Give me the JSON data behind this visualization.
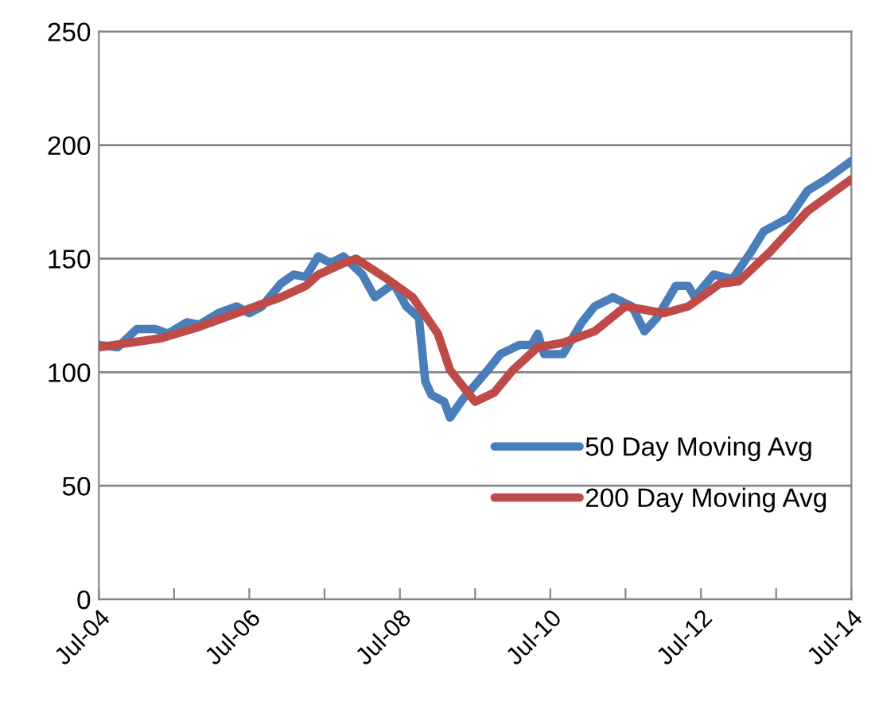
{
  "chart_data": {
    "type": "line",
    "ylim": [
      0,
      250
    ],
    "yticks": [
      0,
      50,
      100,
      150,
      200,
      250
    ],
    "xlim": [
      "2004-07",
      "2014-07"
    ],
    "xticks": [
      {
        "value": "2004-07",
        "label": "Jul-04"
      },
      {
        "value": "2005-07",
        "label": null
      },
      {
        "value": "2006-07",
        "label": "Jul-06"
      },
      {
        "value": "2007-07",
        "label": null
      },
      {
        "value": "2008-07",
        "label": "Jul-08"
      },
      {
        "value": "2009-07",
        "label": null
      },
      {
        "value": "2010-07",
        "label": "Jul-10"
      },
      {
        "value": "2011-07",
        "label": null
      },
      {
        "value": "2012-07",
        "label": "Jul-12"
      },
      {
        "value": "2013-07",
        "label": null
      },
      {
        "value": "2014-07",
        "label": "Jul-14"
      }
    ],
    "grid": "y",
    "legend": "right",
    "marker": "none",
    "line_style": "solid",
    "series": [
      {
        "name": "50 Day Moving Avg",
        "color": "#4a7ebb",
        "x": [
          "2004-07",
          "2004-10",
          "2005-01",
          "2005-04",
          "2005-06",
          "2005-09",
          "2005-11",
          "2006-02",
          "2006-05",
          "2006-07",
          "2006-09",
          "2006-12",
          "2007-02",
          "2007-04",
          "2007-06",
          "2007-08",
          "2007-10",
          "2008-01",
          "2008-03",
          "2008-06",
          "2008-08",
          "2008-10",
          "2008-11",
          "2008-12",
          "2009-02",
          "2009-03",
          "2009-05",
          "2009-09",
          "2009-11",
          "2010-02",
          "2010-04",
          "2010-05",
          "2010-06",
          "2010-09",
          "2010-12",
          "2011-02",
          "2011-05",
          "2011-08",
          "2011-10",
          "2011-12",
          "2012-03",
          "2012-05",
          "2012-06",
          "2012-09",
          "2012-12",
          "2013-03",
          "2013-05",
          "2013-09",
          "2013-12",
          "2014-03",
          "2014-07"
        ],
        "values": [
          112,
          111,
          119,
          119,
          117,
          122,
          121,
          126,
          129,
          126,
          129,
          139,
          143,
          142,
          151,
          148,
          151,
          143,
          133,
          139,
          129,
          124,
          96,
          90,
          87,
          80,
          88,
          101,
          108,
          112,
          112,
          117,
          108,
          108,
          122,
          129,
          133,
          129,
          118,
          124,
          138,
          138,
          133,
          143,
          141,
          153,
          162,
          168,
          180,
          185,
          193
        ]
      },
      {
        "name": "200 Day Moving Avg",
        "color": "#be4b48",
        "x": [
          "2004-07",
          "2005-05",
          "2005-11",
          "2006-05",
          "2006-12",
          "2007-04",
          "2007-06",
          "2007-10",
          "2007-12",
          "2008-05",
          "2008-09",
          "2009-01",
          "2009-03",
          "2009-07",
          "2009-10",
          "2010-01",
          "2010-05",
          "2010-09",
          "2011-02",
          "2011-07",
          "2012-01",
          "2012-05",
          "2012-10",
          "2013-01",
          "2013-06",
          "2013-12",
          "2014-07"
        ],
        "values": [
          111,
          115,
          120,
          126,
          133,
          138,
          143,
          148,
          150,
          141,
          133,
          117,
          101,
          87,
          91,
          101,
          111,
          113,
          118,
          129,
          126,
          129,
          139,
          140,
          153,
          171,
          185
        ]
      }
    ]
  }
}
